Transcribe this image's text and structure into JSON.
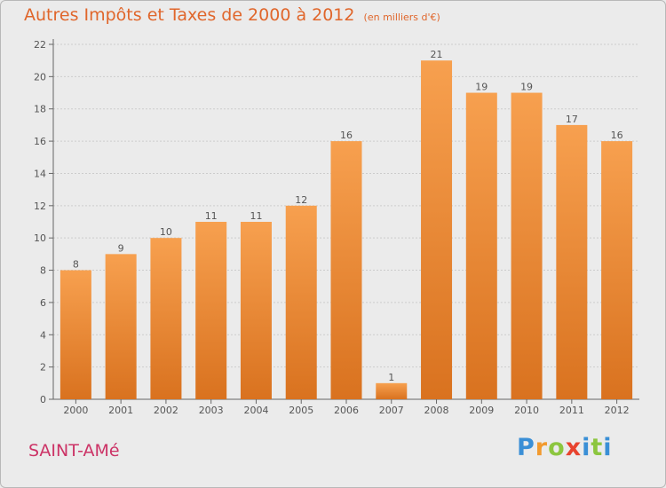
{
  "header": {
    "title": "Autres Impôts et Taxes de 2000 à 2012",
    "subtitle": "(en milliers d'€)"
  },
  "location": "SAINT-AMé",
  "logo": {
    "text": "Proxiti"
  },
  "colors": {
    "bar_light": "#f7a04f",
    "bar_dark": "#d9721f",
    "title": "#e0662b",
    "city": "#cc3366",
    "grid": "#cccccc"
  },
  "chart_data": {
    "type": "bar",
    "title": "Autres Impôts et Taxes de 2000 à 2012",
    "subtitle": "(en milliers d'€)",
    "categories": [
      "2000",
      "2001",
      "2002",
      "2003",
      "2004",
      "2005",
      "2006",
      "2007",
      "2008",
      "2009",
      "2010",
      "2011",
      "2012"
    ],
    "values": [
      8,
      9,
      10,
      11,
      11,
      12,
      16,
      1,
      21,
      19,
      19,
      17,
      16
    ],
    "ylim": [
      0,
      22
    ],
    "yticks": [
      0,
      2,
      4,
      6,
      8,
      10,
      12,
      14,
      16,
      18,
      20,
      22
    ],
    "grid": true,
    "data_labels": true
  }
}
